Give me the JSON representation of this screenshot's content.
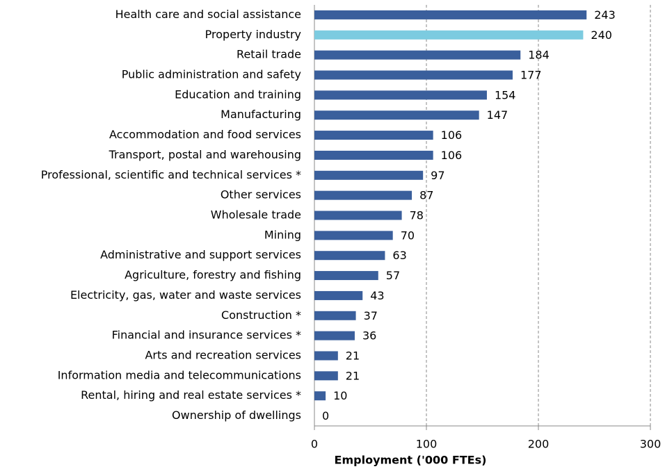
{
  "chart_data": {
    "type": "hbar",
    "x_label": "Employment ('000 FTEs)",
    "categories": [
      "Health care and social assistance",
      "Property industry",
      "Retail trade",
      "Public administration and safety",
      "Education and training",
      "Manufacturing",
      "Accommodation and food services",
      "Transport, postal and warehousing",
      "Professional, scientific and technical services *",
      "Other services",
      "Wholesale trade",
      "Mining",
      "Administrative and support services",
      "Agriculture, forestry and fishing",
      "Electricity, gas, water and waste services",
      "Construction *",
      "Financial and insurance services *",
      "Arts and recreation services",
      "Information media and telecommunications",
      "Rental, hiring and real estate services *",
      "Ownership of dwellings"
    ],
    "values": [
      243,
      240,
      184,
      177,
      154,
      147,
      106,
      106,
      97,
      87,
      78,
      70,
      63,
      57,
      43,
      37,
      36,
      21,
      21,
      10,
      0
    ],
    "colors": [
      "#3a5f9c",
      "#7ccbe0",
      "#3a5f9c",
      "#3a5f9c",
      "#3a5f9c",
      "#3a5f9c",
      "#3a5f9c",
      "#3a5f9c",
      "#3a5f9c",
      "#3a5f9c",
      "#3a5f9c",
      "#3a5f9c",
      "#3a5f9c",
      "#3a5f9c",
      "#3a5f9c",
      "#3a5f9c",
      "#3a5f9c",
      "#3a5f9c",
      "#3a5f9c",
      "#3a5f9c",
      "#3a5f9c"
    ],
    "xlim": [
      0,
      300
    ],
    "xticks": [
      0,
      100,
      200,
      300
    ],
    "grid": true
  }
}
